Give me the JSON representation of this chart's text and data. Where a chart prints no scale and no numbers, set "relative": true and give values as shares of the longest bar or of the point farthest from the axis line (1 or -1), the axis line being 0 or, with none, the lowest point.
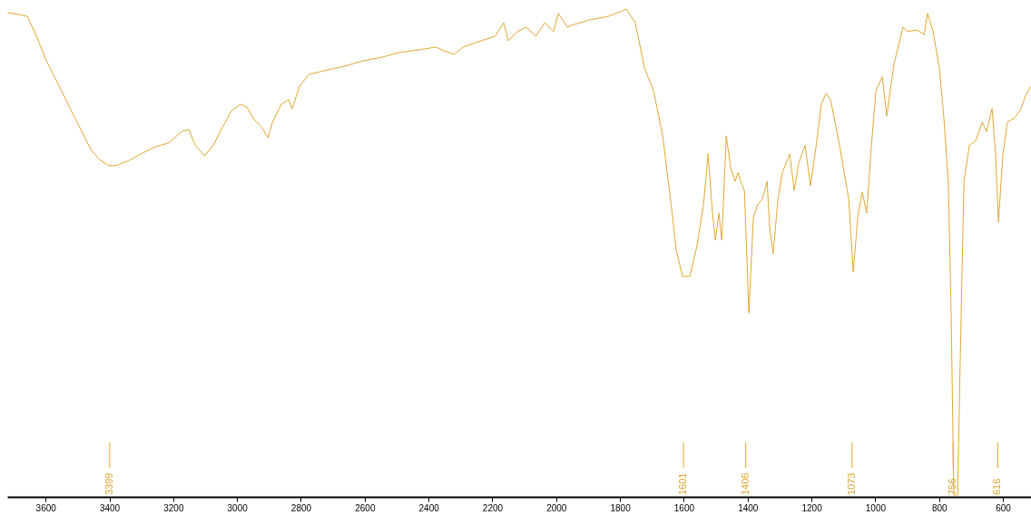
{
  "chart_data": {
    "type": "line",
    "relative": true,
    "x": [
      3719,
      3685,
      3657,
      3628,
      3600,
      3572,
      3543,
      3515,
      3486,
      3458,
      3429,
      3401,
      3378,
      3344,
      3301,
      3259,
      3216,
      3173,
      3151,
      3131,
      3102,
      3074,
      3045,
      3017,
      2989,
      2969,
      2946,
      2923,
      2903,
      2889,
      2861,
      2838,
      2827,
      2804,
      2775,
      2718,
      2662,
      2605,
      2548,
      2491,
      2434,
      2377,
      2349,
      2320,
      2292,
      2235,
      2192,
      2164,
      2150,
      2121,
      2093,
      2064,
      2036,
      2008,
      1993,
      1965,
      1951,
      1894,
      1837,
      1794,
      1780,
      1752,
      1723,
      1695,
      1666,
      1638,
      1624,
      1604,
      1581,
      1558,
      1538,
      1524,
      1510,
      1501,
      1490,
      1481,
      1467,
      1453,
      1439,
      1430,
      1422,
      1410,
      1396,
      1382,
      1368,
      1354,
      1339,
      1331,
      1320,
      1305,
      1291,
      1268,
      1254,
      1240,
      1220,
      1203,
      1183,
      1169,
      1154,
      1140,
      1112,
      1083,
      1069,
      1055,
      1041,
      1027,
      1012,
      998,
      978,
      964,
      941,
      913,
      899,
      870,
      847,
      836,
      819,
      799,
      785,
      771,
      762,
      754,
      742,
      734,
      722,
      705,
      685,
      665,
      651,
      634,
      623,
      614,
      600,
      586,
      563,
      543,
      529,
      512
    ],
    "series": [
      {
        "color": "#e0a830",
        "values": [
          0.993,
          0.989,
          0.985,
          0.944,
          0.898,
          0.861,
          0.823,
          0.786,
          0.749,
          0.712,
          0.69,
          0.679,
          0.679,
          0.688,
          0.703,
          0.717,
          0.725,
          0.749,
          0.753,
          0.721,
          0.699,
          0.721,
          0.758,
          0.792,
          0.805,
          0.799,
          0.773,
          0.758,
          0.736,
          0.768,
          0.805,
          0.814,
          0.796,
          0.842,
          0.866,
          0.875,
          0.883,
          0.894,
          0.901,
          0.911,
          0.916,
          0.922,
          0.914,
          0.907,
          0.922,
          0.935,
          0.944,
          0.972,
          0.935,
          0.954,
          0.963,
          0.944,
          0.972,
          0.954,
          0.991,
          0.963,
          0.967,
          0.978,
          0.985,
          0.996,
          1.0,
          0.972,
          0.879,
          0.833,
          0.74,
          0.591,
          0.507,
          0.452,
          0.452,
          0.517,
          0.6,
          0.703,
          0.582,
          0.526,
          0.582,
          0.526,
          0.74,
          0.675,
          0.647,
          0.665,
          0.647,
          0.628,
          0.377,
          0.572,
          0.6,
          0.61,
          0.647,
          0.554,
          0.498,
          0.61,
          0.665,
          0.703,
          0.628,
          0.684,
          0.721,
          0.638,
          0.73,
          0.805,
          0.827,
          0.814,
          0.721,
          0.61,
          0.461,
          0.572,
          0.625,
          0.582,
          0.721,
          0.833,
          0.861,
          0.781,
          0.888,
          0.963,
          0.954,
          0.957,
          0.948,
          0.991,
          0.954,
          0.879,
          0.777,
          0.647,
          0.368,
          0.004,
          0.004,
          0.275,
          0.647,
          0.721,
          0.73,
          0.768,
          0.749,
          0.796,
          0.703,
          0.563,
          0.703,
          0.768,
          0.777,
          0.796,
          0.823,
          0.842
        ]
      }
    ],
    "xlim": [
      3720,
      512
    ],
    "xticks": [
      3600,
      3400,
      3200,
      3000,
      2800,
      2600,
      2400,
      2200,
      2000,
      1800,
      1600,
      1400,
      1200,
      1000,
      800,
      600
    ],
    "annotations": [
      {
        "text": "3399",
        "x": 3399
      },
      {
        "text": "1601",
        "x": 1601
      },
      {
        "text": "1406",
        "x": 1406
      },
      {
        "text": "1073",
        "x": 1073
      },
      {
        "text": "756",
        "x": 756
      },
      {
        "text": "616",
        "x": 616
      }
    ]
  }
}
